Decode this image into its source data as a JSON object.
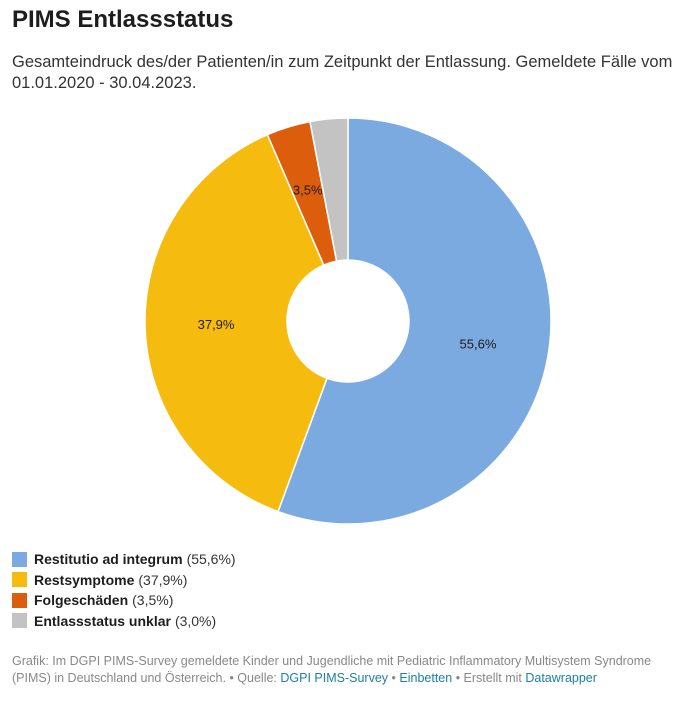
{
  "title": "PIMS Entlassstatus",
  "subtitle": "Gesamteindruck des/der Patienten/in zum Zeitpunkt der Entlassung. Gemeldete Fälle vom 01.01.2020 - 30.04.2023.",
  "chart_data": {
    "type": "pie",
    "style": "donut",
    "categories": [
      "Restitutio ad integrum",
      "Restsymptome",
      "Folgeschäden",
      "Entlassstatus unklar"
    ],
    "values": [
      55.6,
      37.9,
      3.5,
      3.0
    ],
    "labels": [
      "55,6%",
      "37,9%",
      "3,5%",
      ""
    ],
    "colors": [
      "#7aaadf",
      "#f6bb0f",
      "#dc5d0c",
      "#c3c3c3"
    ],
    "legend_placement": "bottom-left"
  },
  "legend": [
    {
      "name": "Restitutio ad integrum",
      "pct": "(55,6%)",
      "color": "#7aaadf"
    },
    {
      "name": "Restsymptome",
      "pct": "(37,9%)",
      "color": "#f6bb0f"
    },
    {
      "name": "Folgeschäden",
      "pct": "(3,5%)",
      "color": "#dc5d0c"
    },
    {
      "name": "Entlassstatus unklar",
      "pct": "(3,0%)",
      "color": "#c3c3c3"
    }
  ],
  "footer": {
    "text1": "Grafik: Im DGPI PIMS-Survey gemeldete Kinder und Jugendliche mit Pediatric Inflammatory Multisystem Syndrome (PIMS) in Deutschland und Österreich. • Quelle: ",
    "source_link": "DGPI PIMS-Survey",
    "sep1": " • ",
    "embed_link": "Einbetten",
    "text2": " • Erstellt mit ",
    "tool_link": "Datawrapper"
  }
}
